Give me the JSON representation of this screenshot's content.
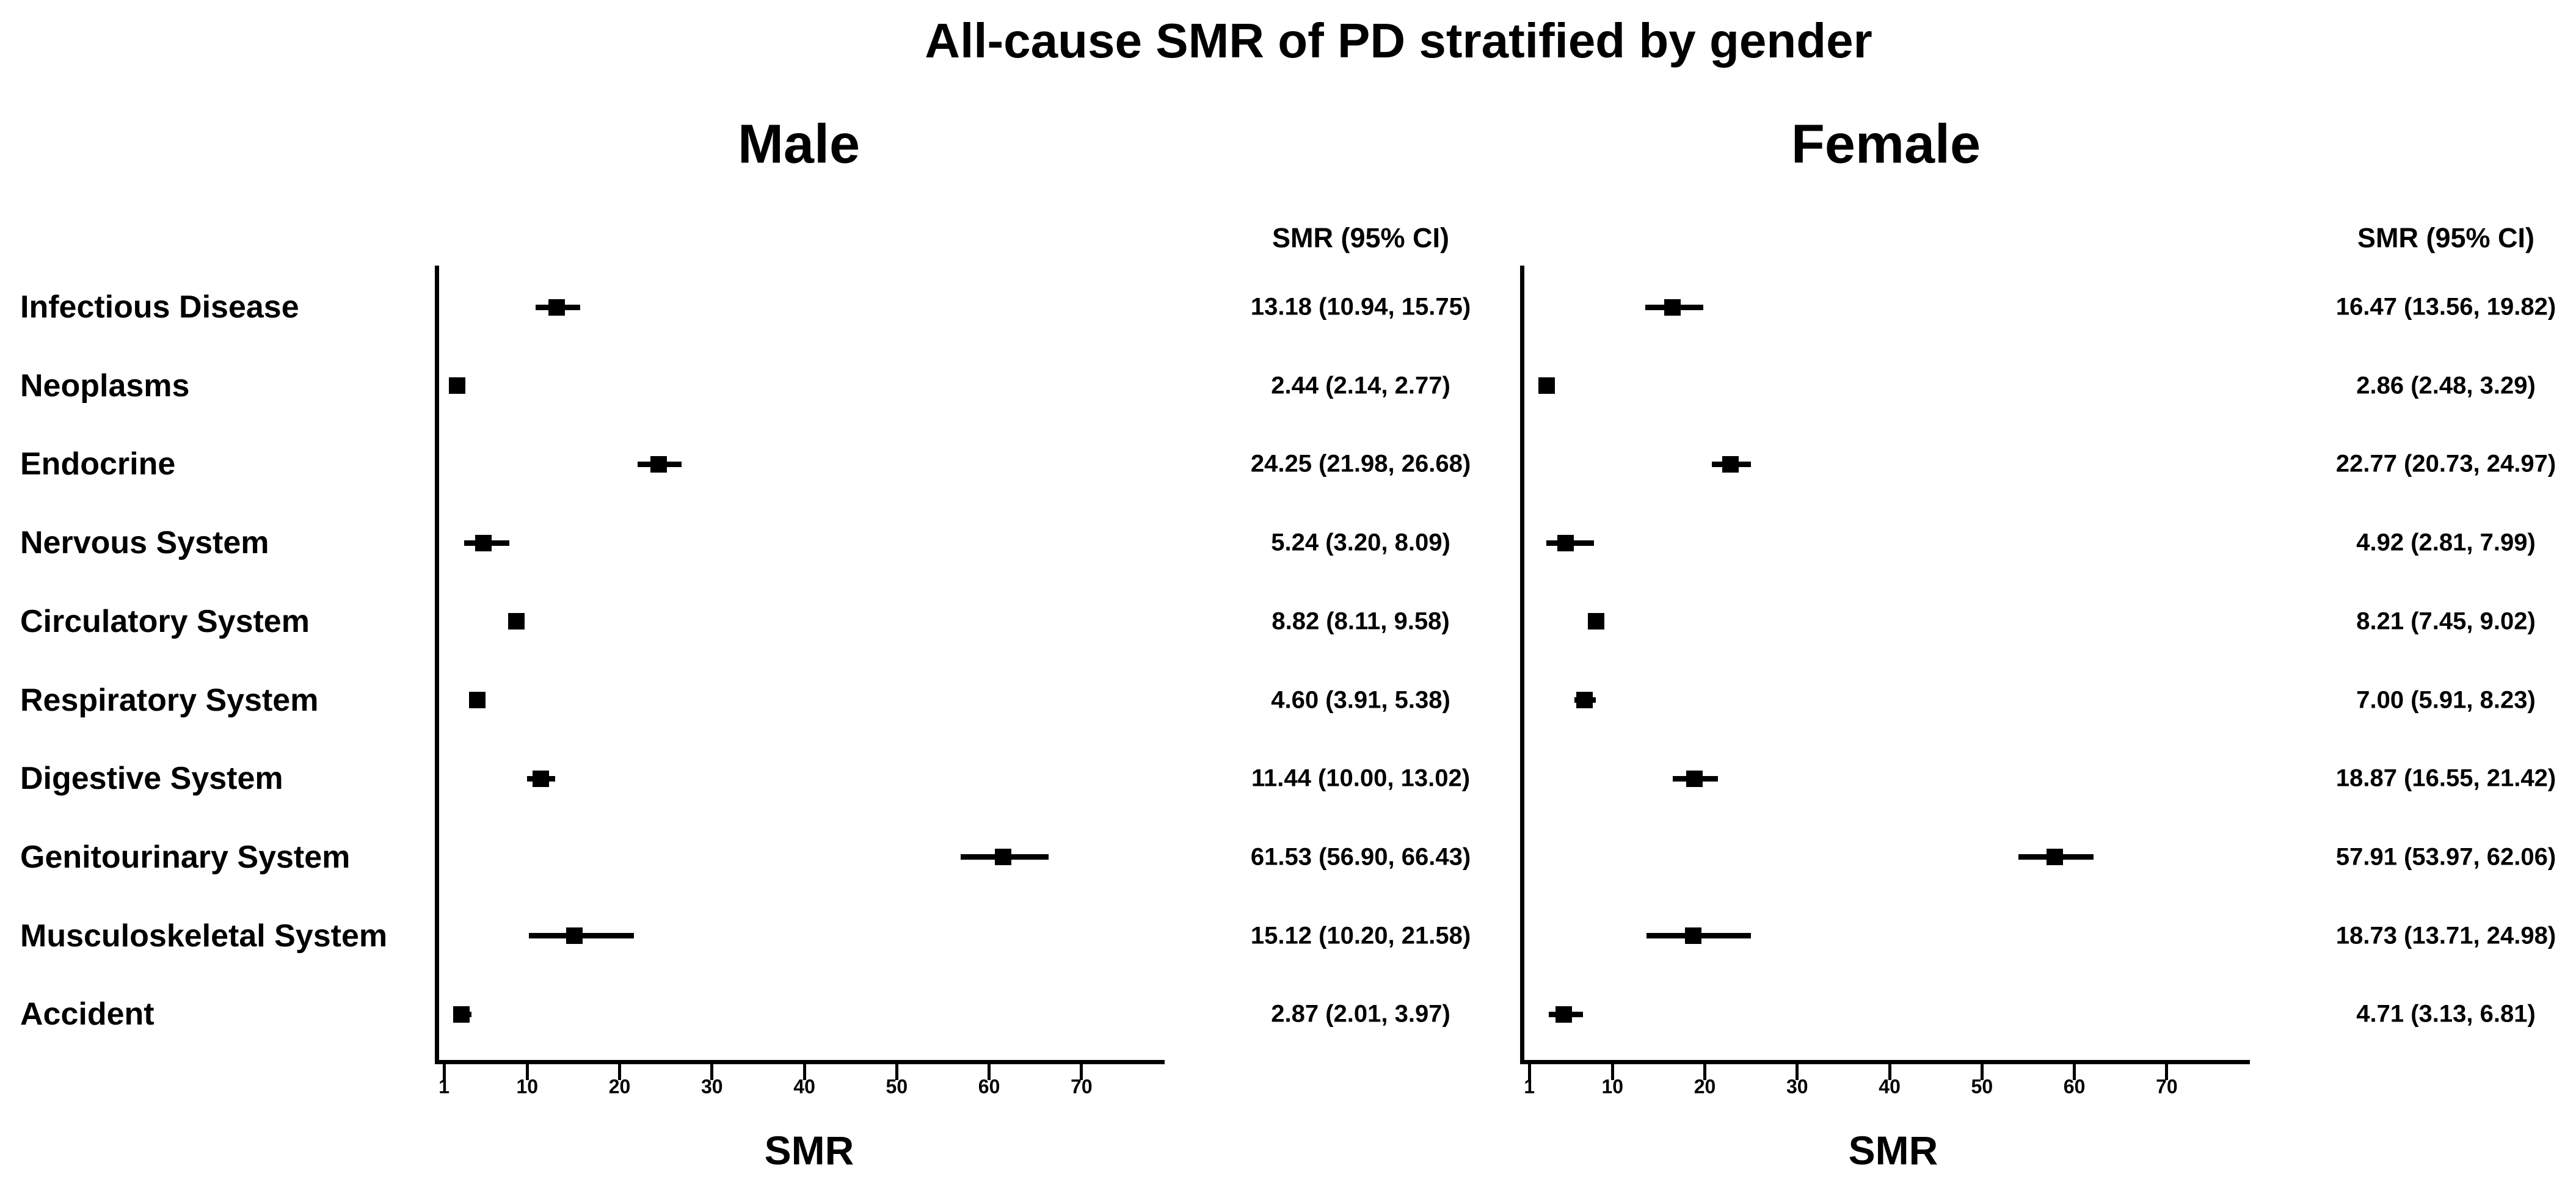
{
  "title": "All-cause SMR of PD stratified by gender",
  "chart_data": {
    "type": "scatter",
    "subtype": "forest-plot",
    "title": "All-cause SMR of PD stratified by gender",
    "categories": [
      "Infectious Disease",
      "Neoplasms",
      "Endocrine",
      "Nervous System",
      "Circulatory System",
      "Respiratory System",
      "Digestive System",
      "Genitourinary System",
      "Musculoskeletal System",
      "Accident"
    ],
    "axis": {
      "xticks": [
        1,
        10,
        20,
        30,
        40,
        50,
        60,
        70
      ],
      "xlim": [
        0,
        79
      ],
      "scale": "linear",
      "grid": false
    },
    "marker_color": "#000000",
    "panels": [
      {
        "name": "Male",
        "col_header": "SMR (95% CI)",
        "xlabel": "SMR",
        "data": [
          {
            "category": "Infectious Disease",
            "smr": 13.18,
            "ci_low": 10.94,
            "ci_high": 15.75,
            "label": "13.18 (10.94, 15.75)"
          },
          {
            "category": "Neoplasms",
            "smr": 2.44,
            "ci_low": 2.14,
            "ci_high": 2.77,
            "label": "2.44 (2.14, 2.77)"
          },
          {
            "category": "Endocrine",
            "smr": 24.25,
            "ci_low": 21.98,
            "ci_high": 26.68,
            "label": "24.25 (21.98, 26.68)"
          },
          {
            "category": "Nervous System",
            "smr": 5.24,
            "ci_low": 3.2,
            "ci_high": 8.09,
            "label": "5.24 (3.20, 8.09)"
          },
          {
            "category": "Circulatory System",
            "smr": 8.82,
            "ci_low": 8.11,
            "ci_high": 9.58,
            "label": "8.82 (8.11, 9.58)"
          },
          {
            "category": "Respiratory System",
            "smr": 4.6,
            "ci_low": 3.91,
            "ci_high": 5.38,
            "label": "4.60 (3.91, 5.38)"
          },
          {
            "category": "Digestive System",
            "smr": 11.44,
            "ci_low": 10.0,
            "ci_high": 13.02,
            "label": "11.44 (10.00, 13.02)"
          },
          {
            "category": "Genitourinary System",
            "smr": 61.53,
            "ci_low": 56.9,
            "ci_high": 66.43,
            "label": "61.53 (56.90, 66.43)"
          },
          {
            "category": "Musculoskeletal System",
            "smr": 15.12,
            "ci_low": 10.2,
            "ci_high": 21.58,
            "label": "15.12 (10.20, 21.58)"
          },
          {
            "category": "Accident",
            "smr": 2.87,
            "ci_low": 2.01,
            "ci_high": 3.97,
            "label": "2.87 (2.01, 3.97)"
          }
        ]
      },
      {
        "name": "Female",
        "col_header": "SMR (95% CI)",
        "xlabel": "SMR",
        "data": [
          {
            "category": "Infectious Disease",
            "smr": 16.47,
            "ci_low": 13.56,
            "ci_high": 19.82,
            "label": "16.47 (13.56, 19.82)"
          },
          {
            "category": "Neoplasms",
            "smr": 2.86,
            "ci_low": 2.48,
            "ci_high": 3.29,
            "label": "2.86 (2.48, 3.29)"
          },
          {
            "category": "Endocrine",
            "smr": 22.77,
            "ci_low": 20.73,
            "ci_high": 24.97,
            "label": "22.77 (20.73, 24.97)"
          },
          {
            "category": "Nervous System",
            "smr": 4.92,
            "ci_low": 2.81,
            "ci_high": 7.99,
            "label": "4.92 (2.81, 7.99)"
          },
          {
            "category": "Circulatory System",
            "smr": 8.21,
            "ci_low": 7.45,
            "ci_high": 9.02,
            "label": "8.21 (7.45, 9.02)"
          },
          {
            "category": "Respiratory System",
            "smr": 7.0,
            "ci_low": 5.91,
            "ci_high": 8.23,
            "label": "7.00 (5.91, 8.23)"
          },
          {
            "category": "Digestive System",
            "smr": 18.87,
            "ci_low": 16.55,
            "ci_high": 21.42,
            "label": "18.87 (16.55, 21.42)"
          },
          {
            "category": "Genitourinary System",
            "smr": 57.91,
            "ci_low": 53.97,
            "ci_high": 62.06,
            "label": "57.91 (53.97, 62.06)"
          },
          {
            "category": "Musculoskeletal System",
            "smr": 18.73,
            "ci_low": 13.71,
            "ci_high": 24.98,
            "label": "18.73 (13.71, 24.98)"
          },
          {
            "category": "Accident",
            "smr": 4.71,
            "ci_low": 3.13,
            "ci_high": 6.81,
            "label": "4.71 (3.13, 6.81)"
          }
        ]
      }
    ]
  }
}
